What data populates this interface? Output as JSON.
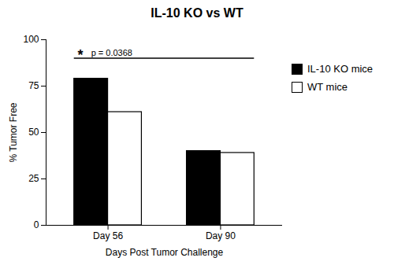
{
  "chart_data": {
    "type": "bar",
    "title": "IL-10 KO vs WT",
    "xlabel": "Days Post Tumor Challenge",
    "ylabel": "% Tumor Free",
    "categories": [
      "Day 56",
      "Day 90"
    ],
    "series": [
      {
        "name": "IL-10 KO mice",
        "color": "#000000",
        "values": [
          79,
          40
        ]
      },
      {
        "name": "WT mice",
        "color": "#ffffff",
        "values": [
          61,
          39
        ]
      }
    ],
    "ylim": [
      0,
      100
    ],
    "yticks": [
      0,
      25,
      50,
      75,
      100
    ],
    "legend": "right",
    "annotations": [
      {
        "text": "*",
        "y": 90
      },
      {
        "text": "p = 0.0368",
        "y": 90
      }
    ]
  }
}
